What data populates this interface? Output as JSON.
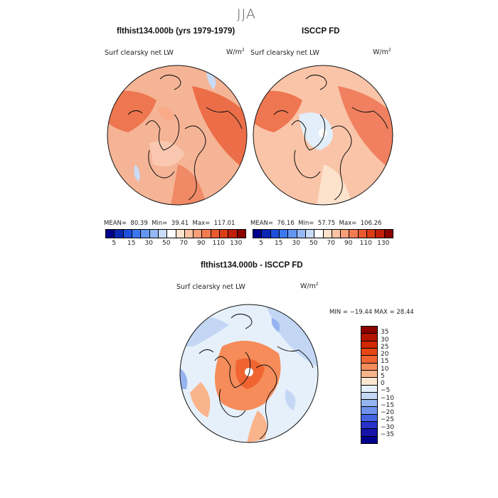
{
  "title": "JJA",
  "panels": [
    {
      "title": "flthist134.000b (yrs 1979-1979)",
      "variable": "Surf clearsky net LW",
      "units_base": "W/m",
      "units_exp": "2",
      "stats": {
        "mean_label": "MEAN=",
        "mean": "80.39",
        "min_label": "Min=",
        "min": "39.41",
        "max_label": "Max=",
        "max": "117.01"
      }
    },
    {
      "title": "ISCCP FD",
      "variable": "Surf clearsky net LW",
      "units_base": "W/m",
      "units_exp": "2",
      "stats": {
        "mean_label": "MEAN=",
        "mean": "76.16",
        "min_label": "Min=",
        "min": "57.75",
        "max_label": "Max=",
        "max": "106.26"
      }
    }
  ],
  "abs_colorbar": {
    "ticks": [
      "5",
      "15",
      "30",
      "50",
      "70",
      "90",
      "110",
      "130"
    ],
    "colors": [
      "#00008a",
      "#0a28b4",
      "#1e50dc",
      "#3c78f0",
      "#6496f0",
      "#96b9f5",
      "#c8dcfa",
      "#ffffff",
      "#fde2cc",
      "#fcc4a4",
      "#f9a07a",
      "#f47c52",
      "#ea5a30",
      "#dc3c16",
      "#c0200a",
      "#8c0000"
    ]
  },
  "diff_panel": {
    "title": "flthist134.000b - ISCCP FD",
    "variable": "Surf clearsky net LW",
    "units_base": "W/m",
    "units_exp": "2",
    "minmax": "MIN = −19.44 MAX =  28.44"
  },
  "diff_colorbar": {
    "ticks": [
      "35",
      "30",
      "25",
      "20",
      "15",
      "10",
      "5",
      "0",
      "−5",
      "−10",
      "−15",
      "−20",
      "−25",
      "−30",
      "−35"
    ],
    "colors": [
      "#8c0000",
      "#b41400",
      "#d22800",
      "#e64614",
      "#f06432",
      "#f58c5a",
      "#fab48c",
      "#fde6d2",
      "#e6f0fa",
      "#c3d7f5",
      "#96b4f0",
      "#6e91eb",
      "#4664e1",
      "#2832c8",
      "#1414aa",
      "#00008c"
    ]
  },
  "colors": {
    "ocean_warm": "#f5b496",
    "land_warm": "#f08260",
    "cool": "#c8dcf5",
    "coast": "#111111"
  }
}
